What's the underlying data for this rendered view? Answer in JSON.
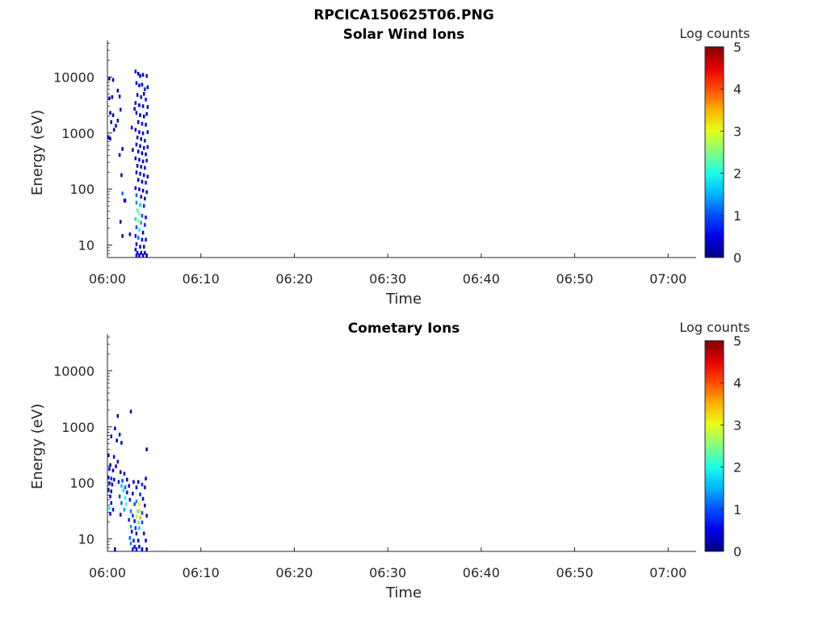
{
  "figure": {
    "title": "RPCICA150625T06.PNG"
  },
  "chart_data": [
    {
      "type": "heatmap",
      "title": "Solar Wind Ions",
      "xlabel": "Time",
      "ylabel": "Energy (eV)",
      "y_scale": "log",
      "ylim": [
        6,
        45000
      ],
      "xlim_minutes": [
        0,
        63
      ],
      "x_tick_labels": [
        "06:00",
        "06:10",
        "06:20",
        "06:30",
        "06:40",
        "06:50",
        "07:00"
      ],
      "y_tick_labels": [
        "10",
        "100",
        "1000",
        "10000"
      ],
      "colorbar": {
        "label": "Log counts",
        "range": [
          0,
          5
        ],
        "tick_labels": [
          "0",
          "1",
          "2",
          "3",
          "4",
          "5"
        ],
        "colormap": "jet"
      },
      "cell_width_minutes": 0.22,
      "cells": [
        [
          0.1,
          9000,
          0.3
        ],
        [
          0.5,
          8500,
          0.3
        ],
        [
          0.1,
          4000,
          0.4
        ],
        [
          0.4,
          4200,
          0.3
        ],
        [
          0.2,
          2200,
          0.3
        ],
        [
          0.5,
          2000,
          0.4
        ],
        [
          0.3,
          1500,
          0.3
        ],
        [
          0.0,
          800,
          0.3
        ],
        [
          0.2,
          760,
          0.4
        ],
        [
          0.6,
          1100,
          0.3
        ],
        [
          0.8,
          1300,
          0.4
        ],
        [
          1.0,
          1600,
          0.3
        ],
        [
          1.2,
          4300,
          0.3
        ],
        [
          1.3,
          2500,
          0.3
        ],
        [
          1.0,
          5500,
          0.3
        ],
        [
          1.2,
          390,
          0.4
        ],
        [
          1.5,
          500,
          0.3
        ],
        [
          1.4,
          170,
          0.3
        ],
        [
          1.5,
          80,
          1.2
        ],
        [
          1.7,
          60,
          0.7
        ],
        [
          1.8,
          60,
          0.6
        ],
        [
          1.3,
          25,
          0.4
        ],
        [
          1.5,
          14,
          0.3
        ],
        [
          2.3,
          15,
          0.4
        ],
        [
          2.5,
          1200,
          0.3
        ],
        [
          2.6,
          480,
          0.4
        ],
        [
          2.8,
          2600,
          0.3
        ],
        [
          2.9,
          12000,
          0.4
        ],
        [
          3.2,
          11000,
          0.3
        ],
        [
          3.4,
          10000,
          0.4
        ],
        [
          3.7,
          10500,
          0.3
        ],
        [
          4.1,
          10000,
          0.4
        ],
        [
          3.0,
          7500,
          0.7
        ],
        [
          3.3,
          6800,
          0.5
        ],
        [
          3.6,
          7000,
          0.4
        ],
        [
          3.9,
          5800,
          0.8
        ],
        [
          4.2,
          6300,
          0.4
        ],
        [
          3.1,
          4600,
          0.3
        ],
        [
          3.5,
          4200,
          0.5
        ],
        [
          3.8,
          4800,
          0.4
        ],
        [
          4.0,
          3800,
          0.7
        ],
        [
          2.9,
          3300,
          0.4
        ],
        [
          3.3,
          3000,
          0.4
        ],
        [
          3.7,
          2900,
          0.6
        ],
        [
          4.2,
          2800,
          0.3
        ],
        [
          3.0,
          2200,
          0.5
        ],
        [
          3.4,
          2000,
          0.4
        ],
        [
          3.8,
          1900,
          0.3
        ],
        [
          4.1,
          2100,
          0.6
        ],
        [
          3.2,
          1500,
          0.4
        ],
        [
          3.6,
          1400,
          0.7
        ],
        [
          4.0,
          1350,
          0.3
        ],
        [
          2.9,
          1100,
          0.3
        ],
        [
          3.3,
          1000,
          0.6
        ],
        [
          3.7,
          950,
          0.4
        ],
        [
          4.2,
          1000,
          0.3
        ],
        [
          3.1,
          800,
          0.5
        ],
        [
          3.5,
          750,
          0.3
        ],
        [
          3.9,
          700,
          0.7
        ],
        [
          3.0,
          600,
          0.4
        ],
        [
          3.4,
          560,
          0.3
        ],
        [
          3.8,
          520,
          0.5
        ],
        [
          4.2,
          540,
          0.4
        ],
        [
          3.2,
          450,
          0.6
        ],
        [
          3.6,
          420,
          0.3
        ],
        [
          4.0,
          400,
          0.4
        ],
        [
          2.9,
          340,
          0.3
        ],
        [
          3.3,
          320,
          0.5
        ],
        [
          3.7,
          300,
          0.4
        ],
        [
          4.1,
          310,
          0.7
        ],
        [
          3.1,
          250,
          0.4
        ],
        [
          3.5,
          240,
          0.3
        ],
        [
          3.9,
          230,
          0.6
        ],
        [
          3.0,
          190,
          0.3
        ],
        [
          3.4,
          180,
          0.6
        ],
        [
          3.8,
          170,
          0.4
        ],
        [
          4.2,
          160,
          0.3
        ],
        [
          3.2,
          140,
          0.5
        ],
        [
          3.6,
          130,
          0.3
        ],
        [
          4.0,
          125,
          0.7
        ],
        [
          2.9,
          100,
          0.6
        ],
        [
          3.3,
          95,
          0.4
        ],
        [
          3.7,
          90,
          0.3
        ],
        [
          4.1,
          85,
          0.5
        ],
        [
          3.0,
          75,
          1.1
        ],
        [
          3.5,
          70,
          0.6
        ],
        [
          3.9,
          65,
          0.4
        ],
        [
          3.0,
          55,
          1.3
        ],
        [
          3.4,
          50,
          1.6
        ],
        [
          3.8,
          48,
          0.8
        ],
        [
          3.1,
          40,
          2.1
        ],
        [
          3.3,
          35,
          2.4
        ],
        [
          3.6,
          32,
          1.0
        ],
        [
          4.0,
          30,
          0.6
        ],
        [
          2.9,
          28,
          1.7
        ],
        [
          3.2,
          26,
          2.6
        ],
        [
          3.5,
          24,
          1.4
        ],
        [
          3.9,
          22,
          0.8
        ],
        [
          3.0,
          20,
          1.0
        ],
        [
          3.3,
          18,
          1.9
        ],
        [
          3.7,
          16,
          0.5
        ],
        [
          2.9,
          14,
          0.7
        ],
        [
          3.2,
          13,
          1.2
        ],
        [
          3.6,
          12,
          0.3
        ],
        [
          4.0,
          12,
          0.5
        ],
        [
          3.0,
          10,
          0.6
        ],
        [
          3.4,
          9,
          0.4
        ],
        [
          3.8,
          9,
          0.3
        ],
        [
          2.9,
          8,
          0.5
        ],
        [
          3.1,
          7,
          0.6
        ],
        [
          3.5,
          7,
          0.3
        ],
        [
          3.9,
          7,
          0.4
        ],
        [
          3.0,
          6.3,
          0.6
        ],
        [
          3.3,
          6.3,
          0.3
        ],
        [
          3.7,
          6.3,
          0.4
        ],
        [
          4.1,
          6.3,
          0.3
        ]
      ]
    },
    {
      "type": "heatmap",
      "title": "Cometary Ions",
      "xlabel": "Time",
      "ylabel": "Energy (eV)",
      "y_scale": "log",
      "ylim": [
        6,
        45000
      ],
      "xlim_minutes": [
        0,
        63
      ],
      "x_tick_labels": [
        "06:00",
        "06:10",
        "06:20",
        "06:30",
        "06:40",
        "06:50",
        "07:00"
      ],
      "y_tick_labels": [
        "10",
        "100",
        "1000",
        "10000"
      ],
      "colorbar": {
        "label": "Log counts",
        "range": [
          0,
          5
        ],
        "tick_labels": [
          "0",
          "1",
          "2",
          "3",
          "4",
          "5"
        ],
        "colormap": "jet"
      },
      "cell_width_minutes": 0.22,
      "cells": [
        [
          1.0,
          1500,
          0.3
        ],
        [
          2.4,
          1800,
          0.3
        ],
        [
          0.7,
          900,
          0.3
        ],
        [
          1.2,
          700,
          0.4
        ],
        [
          0.3,
          650,
          0.3
        ],
        [
          0.9,
          550,
          0.3
        ],
        [
          1.4,
          500,
          0.4
        ],
        [
          4.1,
          380,
          0.3
        ],
        [
          0.0,
          300,
          0.3
        ],
        [
          0.6,
          280,
          0.4
        ],
        [
          1.0,
          230,
          0.5
        ],
        [
          0.2,
          200,
          0.3
        ],
        [
          0.8,
          190,
          0.4
        ],
        [
          0.1,
          170,
          0.6
        ],
        [
          0.5,
          160,
          0.4
        ],
        [
          1.3,
          150,
          0.3
        ],
        [
          1.7,
          140,
          0.3
        ],
        [
          0.0,
          120,
          0.7
        ],
        [
          0.3,
          115,
          0.9
        ],
        [
          0.6,
          110,
          0.5
        ],
        [
          1.1,
          100,
          0.6
        ],
        [
          1.5,
          105,
          1.0
        ],
        [
          2.0,
          110,
          0.4
        ],
        [
          2.7,
          100,
          0.5
        ],
        [
          3.2,
          100,
          0.4
        ],
        [
          3.6,
          90,
          0.8
        ],
        [
          4.0,
          115,
          0.3
        ],
        [
          0.1,
          95,
          0.8
        ],
        [
          0.4,
          90,
          0.6
        ],
        [
          1.4,
          85,
          1.6
        ],
        [
          1.8,
          80,
          1.2
        ],
        [
          2.2,
          85,
          0.5
        ],
        [
          3.0,
          80,
          0.6
        ],
        [
          3.9,
          80,
          0.4
        ],
        [
          0.0,
          72,
          0.6
        ],
        [
          0.3,
          68,
          0.4
        ],
        [
          1.6,
          70,
          1.8
        ],
        [
          2.0,
          65,
          0.7
        ],
        [
          2.6,
          62,
          0.5
        ],
        [
          3.4,
          60,
          0.8
        ],
        [
          0.2,
          55,
          0.3
        ],
        [
          1.2,
          55,
          0.9
        ],
        [
          1.8,
          52,
          1.9
        ],
        [
          2.3,
          48,
          0.7
        ],
        [
          3.0,
          45,
          1.3
        ],
        [
          3.7,
          50,
          0.5
        ],
        [
          0.3,
          42,
          0.6
        ],
        [
          1.4,
          42,
          1.1
        ],
        [
          1.9,
          40,
          2.1
        ],
        [
          2.8,
          40,
          1.0
        ],
        [
          3.3,
          40,
          3.2
        ],
        [
          3.9,
          38,
          0.4
        ],
        [
          0.1,
          34,
          1.9
        ],
        [
          0.5,
          32,
          0.7
        ],
        [
          1.7,
          32,
          1.4
        ],
        [
          2.4,
          30,
          1.2
        ],
        [
          3.1,
          30,
          2.4
        ],
        [
          3.3,
          30,
          3.4
        ],
        [
          3.6,
          28,
          1.0
        ],
        [
          0.2,
          27,
          0.5
        ],
        [
          1.3,
          26,
          0.6
        ],
        [
          2.6,
          25,
          0.9
        ],
        [
          3.0,
          24,
          2.6
        ],
        [
          3.4,
          23,
          3.5
        ],
        [
          4.1,
          25,
          0.5
        ],
        [
          2.2,
          21,
          0.8
        ],
        [
          2.8,
          20,
          0.6
        ],
        [
          3.2,
          19,
          2.3
        ],
        [
          3.6,
          19,
          1.0
        ],
        [
          2.4,
          16,
          1.4
        ],
        [
          2.9,
          15,
          0.8
        ],
        [
          3.3,
          15,
          1.6
        ],
        [
          2.5,
          13,
          0.7
        ],
        [
          3.0,
          12,
          0.5
        ],
        [
          3.8,
          12,
          0.6
        ],
        [
          2.3,
          10,
          1.1
        ],
        [
          2.7,
          9,
          0.8
        ],
        [
          3.2,
          9,
          0.5
        ],
        [
          4.0,
          9,
          0.4
        ],
        [
          2.4,
          8,
          1.3
        ],
        [
          2.8,
          7,
          0.6
        ],
        [
          3.3,
          7,
          0.4
        ],
        [
          2.6,
          6.3,
          0.8
        ],
        [
          3.0,
          6.3,
          0.5
        ],
        [
          3.6,
          6.3,
          0.3
        ],
        [
          0.7,
          6.3,
          0.3
        ],
        [
          4.1,
          6.3,
          0.3
        ]
      ]
    }
  ]
}
